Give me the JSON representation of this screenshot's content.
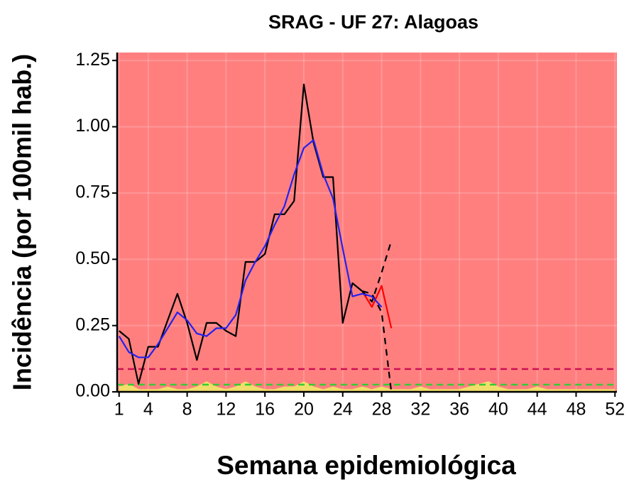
{
  "chart_data": {
    "type": "line",
    "title": "SRAG - UF 27: Alagoas",
    "x_label": "Semana epidemiológica",
    "y_label": "Incidência (por 100mil hab.)",
    "x": [
      1,
      2,
      3,
      4,
      5,
      6,
      7,
      8,
      9,
      10,
      11,
      12,
      13,
      14,
      15,
      16,
      17,
      18,
      19,
      20,
      21,
      22,
      23,
      24,
      25,
      26,
      27,
      28,
      29,
      30,
      31,
      32,
      33,
      34,
      35,
      36,
      37,
      38,
      39,
      40,
      41,
      42,
      43,
      44,
      45,
      46,
      47,
      48,
      49,
      50,
      51,
      52
    ],
    "xlim": [
      0.8,
      52.2
    ],
    "xticks": [
      1,
      4,
      8,
      12,
      16,
      20,
      24,
      28,
      32,
      36,
      40,
      44,
      48,
      52
    ],
    "ylim": [
      0,
      1.28
    ],
    "yticks": [
      {
        "value": 0,
        "label": "0.00"
      },
      {
        "value": 0.25,
        "label": "0.25"
      },
      {
        "value": 0.5,
        "label": "0.50"
      },
      {
        "value": 0.75,
        "label": "0.75"
      },
      {
        "value": 1,
        "label": "1.00"
      },
      {
        "value": 1.25,
        "label": "1.25"
      }
    ],
    "background": "#ff7f7f",
    "grid": true,
    "hlines": [
      {
        "value": 0.086,
        "color": "#cc1155"
      },
      {
        "value": 0.027,
        "color": "#33cc33"
      }
    ],
    "areas": [
      {
        "color": "#eeee66",
        "values": [
          0.02,
          0.03,
          0.01,
          0.01,
          0.01,
          0.02,
          0.01,
          0.01,
          0.02,
          0.04,
          0.02,
          0.01,
          0.02,
          0.04,
          0.02,
          0.01,
          0.01,
          0.02,
          0.02,
          0.04,
          0.02,
          0.01,
          0.02,
          0.01,
          0.01,
          0.02,
          0.01,
          0.02,
          0.01,
          0.01,
          0.01,
          0.02,
          0.01,
          0.01,
          0.01,
          0.01,
          0.02,
          0.03,
          0.04,
          0.02,
          0.01,
          0.01,
          0.01,
          0.02,
          0.01,
          0.01,
          0.01,
          0.01,
          0.01,
          0.01,
          0.01,
          0.01
        ]
      }
    ],
    "series": [
      {
        "color": "#000000",
        "dash": false,
        "values": [
          0.23,
          0.2,
          0.03,
          0.17,
          0.17,
          0.27,
          0.37,
          0.26,
          0.12,
          0.26,
          0.26,
          0.23,
          0.21,
          0.49,
          0.49,
          0.52,
          0.67,
          0.67,
          0.72,
          1.16,
          0.94,
          0.81,
          0.81,
          0.26,
          0.41,
          0.38,
          null,
          null,
          null,
          null,
          null,
          null,
          null,
          null,
          null,
          null,
          null,
          null,
          null,
          null,
          null,
          null,
          null,
          null,
          null,
          null,
          null,
          null,
          null,
          null,
          null,
          null
        ]
      },
      {
        "color": "#ff0000",
        "dash": false,
        "values": [
          null,
          null,
          null,
          null,
          null,
          null,
          null,
          null,
          null,
          null,
          null,
          null,
          null,
          null,
          null,
          null,
          null,
          null,
          null,
          null,
          null,
          null,
          null,
          null,
          null,
          0.38,
          0.32,
          0.4,
          0.24,
          null,
          null,
          null,
          null,
          null,
          null,
          null,
          null,
          null,
          null,
          null,
          null,
          null,
          null,
          null,
          null,
          null,
          null,
          null,
          null,
          null,
          null,
          null
        ]
      },
      {
        "color": "#000000",
        "dash": true,
        "values": [
          null,
          null,
          null,
          null,
          null,
          null,
          null,
          null,
          null,
          null,
          null,
          null,
          null,
          null,
          null,
          null,
          null,
          null,
          null,
          null,
          null,
          null,
          null,
          null,
          null,
          0.38,
          0.34,
          0.45,
          0.57,
          null,
          null,
          null,
          null,
          null,
          null,
          null,
          null,
          null,
          null,
          null,
          null,
          null,
          null,
          null,
          null,
          null,
          null,
          null,
          null,
          null,
          null,
          null
        ]
      },
      {
        "color": "#000000",
        "dash": true,
        "values": [
          null,
          null,
          null,
          null,
          null,
          null,
          null,
          null,
          null,
          null,
          null,
          null,
          null,
          null,
          null,
          null,
          null,
          null,
          null,
          null,
          null,
          null,
          null,
          null,
          null,
          0.38,
          0.37,
          0.3,
          0.0,
          null,
          null,
          null,
          null,
          null,
          null,
          null,
          null,
          null,
          null,
          null,
          null,
          null,
          null,
          null,
          null,
          null,
          null,
          null,
          null,
          null,
          null,
          null
        ]
      },
      {
        "color": "#2222ee",
        "dash": false,
        "values": [
          0.21,
          0.15,
          0.13,
          0.13,
          0.18,
          0.24,
          0.3,
          0.27,
          0.22,
          0.21,
          0.24,
          0.24,
          0.29,
          0.42,
          0.49,
          0.55,
          0.63,
          0.7,
          0.82,
          0.92,
          0.95,
          0.82,
          0.73,
          0.54,
          0.36,
          0.37,
          0.36,
          0.32,
          null,
          null,
          null,
          null,
          null,
          null,
          null,
          null,
          null,
          null,
          null,
          null,
          null,
          null,
          null,
          null,
          null,
          null,
          null,
          null,
          null,
          null,
          null,
          null
        ]
      }
    ]
  }
}
